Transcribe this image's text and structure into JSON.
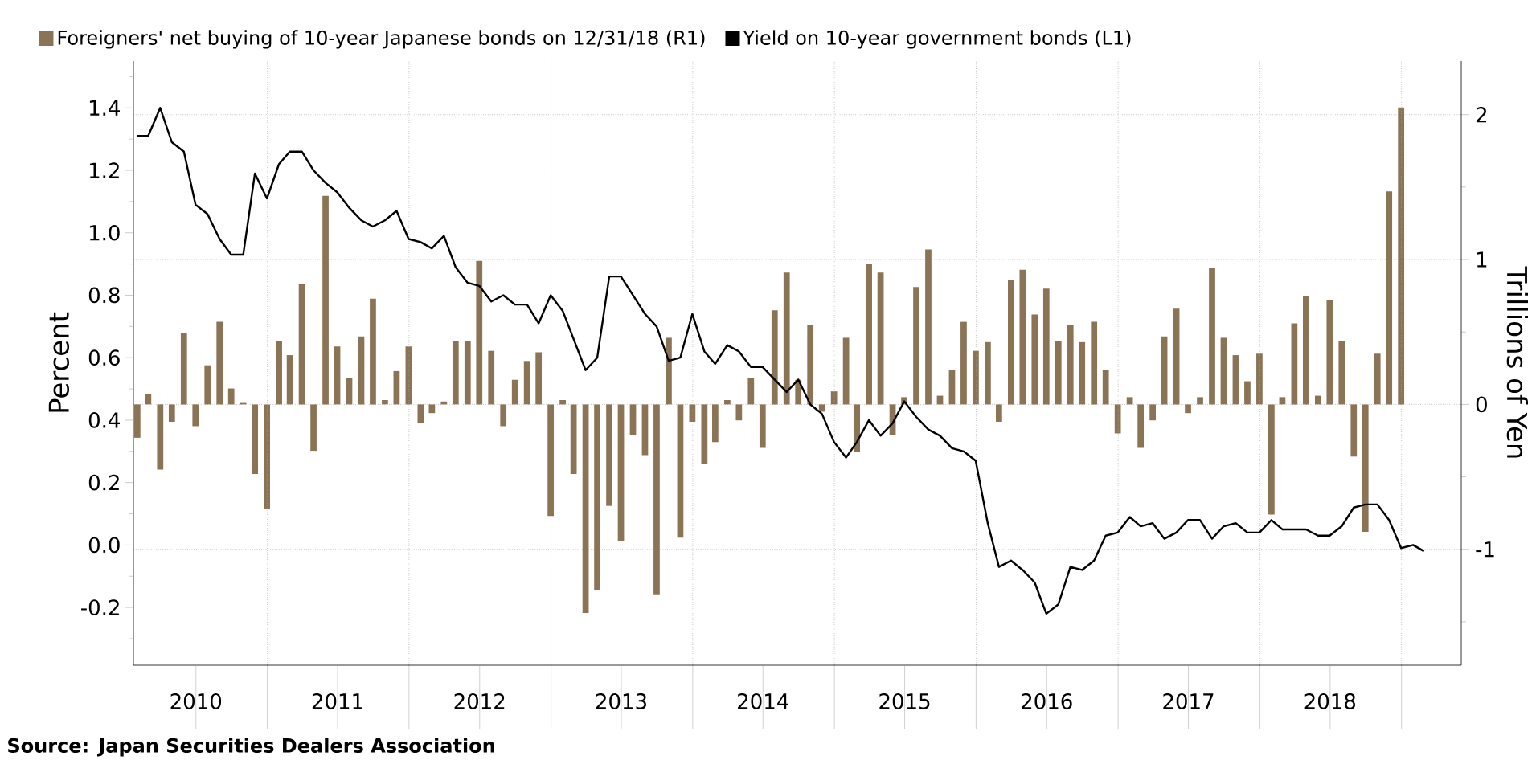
{
  "chart_data": {
    "type": "bar",
    "x": [
      "2010-01-31",
      "2010-02-28",
      "2010-03-31",
      "2010-04-30",
      "2010-05-31",
      "2010-06-30",
      "2010-07-31",
      "2010-08-31",
      "2010-09-30",
      "2010-10-31",
      "2010-11-30",
      "2010-12-31",
      "2011-01-31",
      "2011-02-28",
      "2011-03-31",
      "2011-04-30",
      "2011-05-31",
      "2011-06-30",
      "2011-07-31",
      "2011-08-31",
      "2011-09-30",
      "2011-10-31",
      "2011-11-30",
      "2011-12-31",
      "2012-01-31",
      "2012-02-29",
      "2012-03-31",
      "2012-04-30",
      "2012-05-31",
      "2012-06-30",
      "2012-07-31",
      "2012-08-31",
      "2012-09-30",
      "2012-10-31",
      "2012-11-30",
      "2012-12-31",
      "2013-01-31",
      "2013-02-28",
      "2013-03-31",
      "2013-04-30",
      "2013-05-31",
      "2013-06-30",
      "2013-07-31",
      "2013-08-31",
      "2013-09-30",
      "2013-10-31",
      "2013-11-30",
      "2013-12-31",
      "2014-01-31",
      "2014-02-28",
      "2014-03-31",
      "2014-04-30",
      "2014-05-31",
      "2014-06-30",
      "2014-07-31",
      "2014-08-31",
      "2014-09-30",
      "2014-10-31",
      "2014-11-30",
      "2014-12-31",
      "2015-01-31",
      "2015-02-28",
      "2015-03-31",
      "2015-04-30",
      "2015-05-31",
      "2015-06-30",
      "2015-07-31",
      "2015-08-31",
      "2015-09-30",
      "2015-10-31",
      "2015-11-30",
      "2015-12-31",
      "2016-01-31",
      "2016-02-29",
      "2016-03-31",
      "2016-04-30",
      "2016-05-31",
      "2016-06-30",
      "2016-07-31",
      "2016-08-31",
      "2016-09-30",
      "2016-10-31",
      "2016-11-30",
      "2016-12-31",
      "2017-01-31",
      "2017-02-28",
      "2017-03-31",
      "2017-04-30",
      "2017-05-31",
      "2017-06-30",
      "2017-07-31",
      "2017-08-31",
      "2017-09-30",
      "2017-10-31",
      "2017-11-30",
      "2017-12-31",
      "2018-01-31",
      "2018-02-28",
      "2018-03-31",
      "2018-04-30",
      "2018-05-31",
      "2018-06-30",
      "2018-07-31",
      "2018-08-31",
      "2018-09-30",
      "2018-10-31",
      "2018-11-30",
      "2018-12-31"
    ],
    "xlim": [
      "2010-01-21",
      "2019-06-04"
    ],
    "xticks": [
      {
        "value": "2010-07-01",
        "label": "2010"
      },
      {
        "value": "2011-01-01",
        "label": null
      },
      {
        "value": "2011-07-01",
        "label": "2011"
      },
      {
        "value": "2012-01-01",
        "label": null
      },
      {
        "value": "2012-07-01",
        "label": "2012"
      },
      {
        "value": "2013-01-01",
        "label": null
      },
      {
        "value": "2013-07-01",
        "label": "2013"
      },
      {
        "value": "2014-01-01",
        "label": null
      },
      {
        "value": "2014-07-01",
        "label": "2014"
      },
      {
        "value": "2015-01-01",
        "label": null
      },
      {
        "value": "2015-07-01",
        "label": "2015"
      },
      {
        "value": "2016-01-01",
        "label": null
      },
      {
        "value": "2016-07-01",
        "label": "2016"
      },
      {
        "value": "2017-01-01",
        "label": null
      },
      {
        "value": "2017-07-01",
        "label": "2017"
      },
      {
        "value": "2018-01-01",
        "label": null
      },
      {
        "value": "2018-07-01",
        "label": "2018"
      },
      {
        "value": "2019-01-01",
        "label": null
      }
    ],
    "ylim": [
      -0.385,
      1.55
    ],
    "yticks": [
      {
        "value": -0.3,
        "label": null
      },
      -0.2,
      {
        "value": -0.1,
        "label": null
      },
      {
        "value": 0,
        "label": "0.0"
      },
      {
        "value": 0.1,
        "label": null
      },
      0.2,
      {
        "value": 0.3,
        "label": null
      },
      0.4,
      {
        "value": 0.5,
        "label": null
      },
      0.6,
      {
        "value": 0.7,
        "label": null
      },
      0.8,
      {
        "value": 0.9,
        "label": null
      },
      {
        "value": 1,
        "label": "1.0"
      },
      {
        "value": 1.1,
        "label": null
      },
      1.2,
      {
        "value": 1.3,
        "label": null
      },
      1.4,
      {
        "value": 1.5,
        "label": null
      }
    ],
    "y2lim": [
      -1.8,
      2.37
    ],
    "y2ticks": [
      {
        "value": -1.5,
        "label": null
      },
      -1,
      {
        "value": -0.5,
        "label": null
      },
      0,
      {
        "value": 0.5,
        "label": null
      },
      1,
      {
        "value": 1.5,
        "label": null
      },
      2
    ],
    "ylabel": "Percent",
    "y2label": "Trillions of Yen",
    "grid": true,
    "legend": "top",
    "annotations": [
      "Source: Japan Securities Dealers Association"
    ],
    "series": [
      {
        "name": "Foreigners' net buying of 10-year Japanese bonds on 12/31/18 (R1)",
        "color": "#8b7355",
        "axis": "y2",
        "values": [
          -0.23,
          0.07,
          -0.45,
          -0.12,
          0.49,
          -0.15,
          0.27,
          0.57,
          0.11,
          0.01,
          -0.48,
          -0.72,
          0.44,
          0.34,
          0.83,
          -0.32,
          1.44,
          0.4,
          0.18,
          0.47,
          0.73,
          0.03,
          0.23,
          0.4,
          -0.13,
          -0.06,
          0.02,
          0.44,
          0.44,
          0.99,
          0.37,
          -0.15,
          0.17,
          0.3,
          0.36,
          -0.77,
          0.03,
          -0.48,
          -1.44,
          -1.28,
          -0.7,
          -0.94,
          -0.21,
          -0.35,
          -1.31,
          0.46,
          -0.92,
          -0.12,
          -0.41,
          -0.26,
          0.03,
          -0.11,
          0.18,
          -0.3,
          0.65,
          0.91,
          0.17,
          0.55,
          -0.05,
          0.09,
          0.46,
          -0.33,
          0.97,
          0.91,
          -0.21,
          0.05,
          0.81,
          1.07,
          0.06,
          0.24,
          0.57,
          0.37,
          0.43,
          -0.12,
          0.86,
          0.93,
          0.62,
          0.8,
          0.44,
          0.55,
          0.43,
          0.57,
          0.24,
          -0.2,
          0.05,
          -0.3,
          -0.11,
          0.47,
          0.66,
          -0.06,
          0.05,
          0.94,
          0.46,
          0.34,
          0.16,
          0.35,
          -0.76,
          0.05,
          0.56,
          0.75,
          0.06,
          0.72,
          0.44,
          -0.36,
          -0.88,
          0.35,
          1.47,
          2.05
        ]
      },
      {
        "name": "Yield on 10-year government bonds (L1)",
        "color": "#000000",
        "type": "line",
        "axis": "y",
        "x": [
          "2010-01-31",
          "2010-02-28",
          "2010-03-31",
          "2010-04-30",
          "2010-05-31",
          "2010-06-30",
          "2010-07-31",
          "2010-08-31",
          "2010-09-30",
          "2010-10-31",
          "2010-11-30",
          "2010-12-31",
          "2011-01-31",
          "2011-02-28",
          "2011-03-31",
          "2011-04-30",
          "2011-05-31",
          "2011-06-30",
          "2011-07-31",
          "2011-08-31",
          "2011-09-30",
          "2011-10-31",
          "2011-11-30",
          "2011-12-31",
          "2012-01-31",
          "2012-02-29",
          "2012-03-31",
          "2012-04-30",
          "2012-05-31",
          "2012-06-30",
          "2012-07-31",
          "2012-08-31",
          "2012-09-30",
          "2012-10-31",
          "2012-11-30",
          "2012-12-31",
          "2013-01-31",
          "2013-02-28",
          "2013-03-31",
          "2013-04-30",
          "2013-05-31",
          "2013-06-30",
          "2013-07-31",
          "2013-08-31",
          "2013-09-30",
          "2013-10-31",
          "2013-11-30",
          "2013-12-31",
          "2014-01-31",
          "2014-02-28",
          "2014-03-31",
          "2014-04-30",
          "2014-05-31",
          "2014-06-30",
          "2014-07-31",
          "2014-08-31",
          "2014-09-30",
          "2014-10-31",
          "2014-11-30",
          "2014-12-31",
          "2015-01-31",
          "2015-02-28",
          "2015-03-31",
          "2015-04-30",
          "2015-05-31",
          "2015-06-30",
          "2015-07-31",
          "2015-08-31",
          "2015-09-30",
          "2015-10-31",
          "2015-11-30",
          "2015-12-31",
          "2016-01-31",
          "2016-02-29",
          "2016-03-31",
          "2016-04-30",
          "2016-05-31",
          "2016-06-30",
          "2016-07-31",
          "2016-08-31",
          "2016-09-30",
          "2016-10-31",
          "2016-11-30",
          "2016-12-31",
          "2017-01-31",
          "2017-02-28",
          "2017-03-31",
          "2017-04-30",
          "2017-05-31",
          "2017-06-30",
          "2017-07-31",
          "2017-08-31",
          "2017-09-30",
          "2017-10-31",
          "2017-11-30",
          "2017-12-31",
          "2018-01-31",
          "2018-02-28",
          "2018-03-31",
          "2018-04-30",
          "2018-05-31",
          "2018-06-30",
          "2018-07-31",
          "2018-08-31",
          "2018-09-30",
          "2018-10-31",
          "2018-11-30",
          "2018-12-31",
          "2019-01-31",
          "2019-02-28"
        ],
        "values": [
          1.31,
          1.31,
          1.4,
          1.29,
          1.26,
          1.09,
          1.06,
          0.98,
          0.93,
          0.93,
          1.19,
          1.11,
          1.22,
          1.26,
          1.26,
          1.2,
          1.16,
          1.13,
          1.08,
          1.04,
          1.02,
          1.04,
          1.07,
          0.98,
          0.97,
          0.95,
          0.99,
          0.89,
          0.84,
          0.83,
          0.78,
          0.8,
          0.77,
          0.77,
          0.71,
          0.8,
          0.75,
          0.66,
          0.56,
          0.6,
          0.86,
          0.86,
          0.8,
          0.74,
          0.7,
          0.59,
          0.6,
          0.74,
          0.62,
          0.58,
          0.64,
          0.62,
          0.57,
          0.57,
          0.53,
          0.49,
          0.53,
          0.45,
          0.42,
          0.33,
          0.28,
          0.33,
          0.4,
          0.35,
          0.39,
          0.46,
          0.41,
          0.37,
          0.35,
          0.31,
          0.3,
          0.27,
          0.07,
          -0.07,
          -0.05,
          -0.08,
          -0.12,
          -0.22,
          -0.19,
          -0.07,
          -0.08,
          -0.05,
          0.03,
          0.04,
          0.09,
          0.06,
          0.07,
          0.02,
          0.04,
          0.08,
          0.08,
          0.02,
          0.06,
          0.07,
          0.04,
          0.04,
          0.08,
          0.05,
          0.05,
          0.05,
          0.03,
          0.03,
          0.06,
          0.12,
          0.13,
          0.13,
          0.08,
          -0.01,
          0.0,
          -0.02
        ]
      }
    ]
  }
}
